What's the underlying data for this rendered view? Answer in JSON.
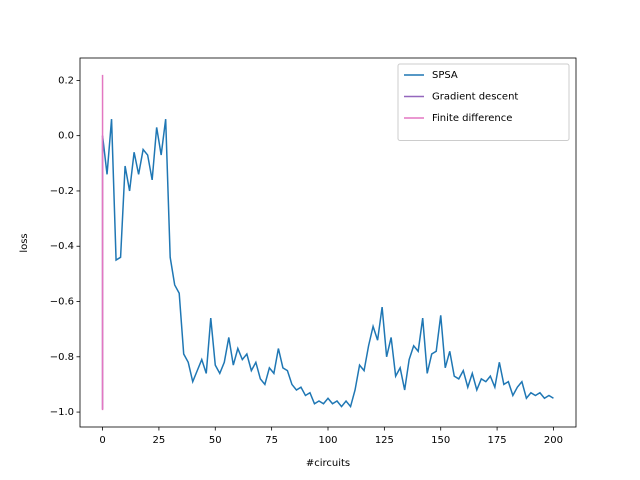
{
  "chart_data": {
    "type": "line",
    "xlabel": "#circuits",
    "ylabel": "loss",
    "xlim": [
      -10,
      210
    ],
    "ylim": [
      -1.054,
      0.281
    ],
    "xticks": [
      0,
      25,
      50,
      75,
      100,
      125,
      150,
      175,
      200
    ],
    "yticks": [
      0.2,
      {
        "value": 0,
        "label": "0.0"
      },
      {
        "value": -0.2,
        "label": "−0.2"
      },
      {
        "value": -0.4,
        "label": "−0.4"
      },
      {
        "value": -0.6,
        "label": "−0.6"
      },
      {
        "value": -0.8,
        "label": "−0.8"
      },
      {
        "value": -1.0,
        "label": "−1.0"
      }
    ],
    "legend": "upper right",
    "series": [
      {
        "name": "SPSA",
        "color": "#1f77b4",
        "x": [
          0,
          2,
          4,
          6,
          8,
          10,
          12,
          14,
          16,
          18,
          20,
          22,
          24,
          26,
          28,
          30,
          32,
          34,
          36,
          38,
          40,
          42,
          44,
          46,
          48,
          50,
          52,
          54,
          56,
          58,
          60,
          62,
          64,
          66,
          68,
          70,
          72,
          74,
          76,
          78,
          80,
          82,
          84,
          86,
          88,
          90,
          92,
          94,
          96,
          98,
          100,
          102,
          104,
          106,
          108,
          110,
          112,
          114,
          116,
          118,
          120,
          122,
          124,
          126,
          128,
          130,
          132,
          134,
          136,
          138,
          140,
          142,
          144,
          146,
          148,
          150,
          152,
          154,
          156,
          158,
          160,
          162,
          164,
          166,
          168,
          170,
          172,
          174,
          176,
          178,
          180,
          182,
          184,
          186,
          188,
          190,
          192,
          194,
          196,
          198,
          200
        ],
        "values": [
          0.0,
          -0.14,
          0.06,
          -0.45,
          -0.44,
          -0.11,
          -0.2,
          -0.06,
          -0.14,
          -0.05,
          -0.07,
          -0.16,
          0.03,
          -0.07,
          0.06,
          -0.44,
          -0.54,
          -0.57,
          -0.79,
          -0.82,
          -0.89,
          -0.85,
          -0.81,
          -0.86,
          -0.66,
          -0.83,
          -0.86,
          -0.82,
          -0.73,
          -0.83,
          -0.77,
          -0.81,
          -0.79,
          -0.85,
          -0.82,
          -0.88,
          -0.9,
          -0.84,
          -0.86,
          -0.77,
          -0.84,
          -0.85,
          -0.9,
          -0.92,
          -0.91,
          -0.94,
          -0.93,
          -0.97,
          -0.96,
          -0.97,
          -0.95,
          -0.97,
          -0.96,
          -0.98,
          -0.96,
          -0.98,
          -0.92,
          -0.83,
          -0.85,
          -0.76,
          -0.69,
          -0.74,
          -0.62,
          -0.8,
          -0.73,
          -0.87,
          -0.84,
          -0.92,
          -0.81,
          -0.76,
          -0.78,
          -0.66,
          -0.86,
          -0.79,
          -0.78,
          -0.65,
          -0.84,
          -0.78,
          -0.87,
          -0.88,
          -0.85,
          -0.91,
          -0.86,
          -0.92,
          -0.88,
          -0.89,
          -0.87,
          -0.91,
          -0.82,
          -0.9,
          -0.89,
          -0.94,
          -0.91,
          -0.89,
          -0.95,
          -0.93,
          -0.94,
          -0.93,
          -0.95,
          -0.94,
          -0.95
        ]
      },
      {
        "name": "Gradient descent",
        "color": "#9467bd",
        "x": [
          0,
          0
        ],
        "values": [
          0.0,
          -0.99
        ]
      },
      {
        "name": "Finite difference",
        "color": "#e377c2",
        "x": [
          0,
          0
        ],
        "values": [
          0.22,
          -0.993
        ]
      }
    ]
  }
}
